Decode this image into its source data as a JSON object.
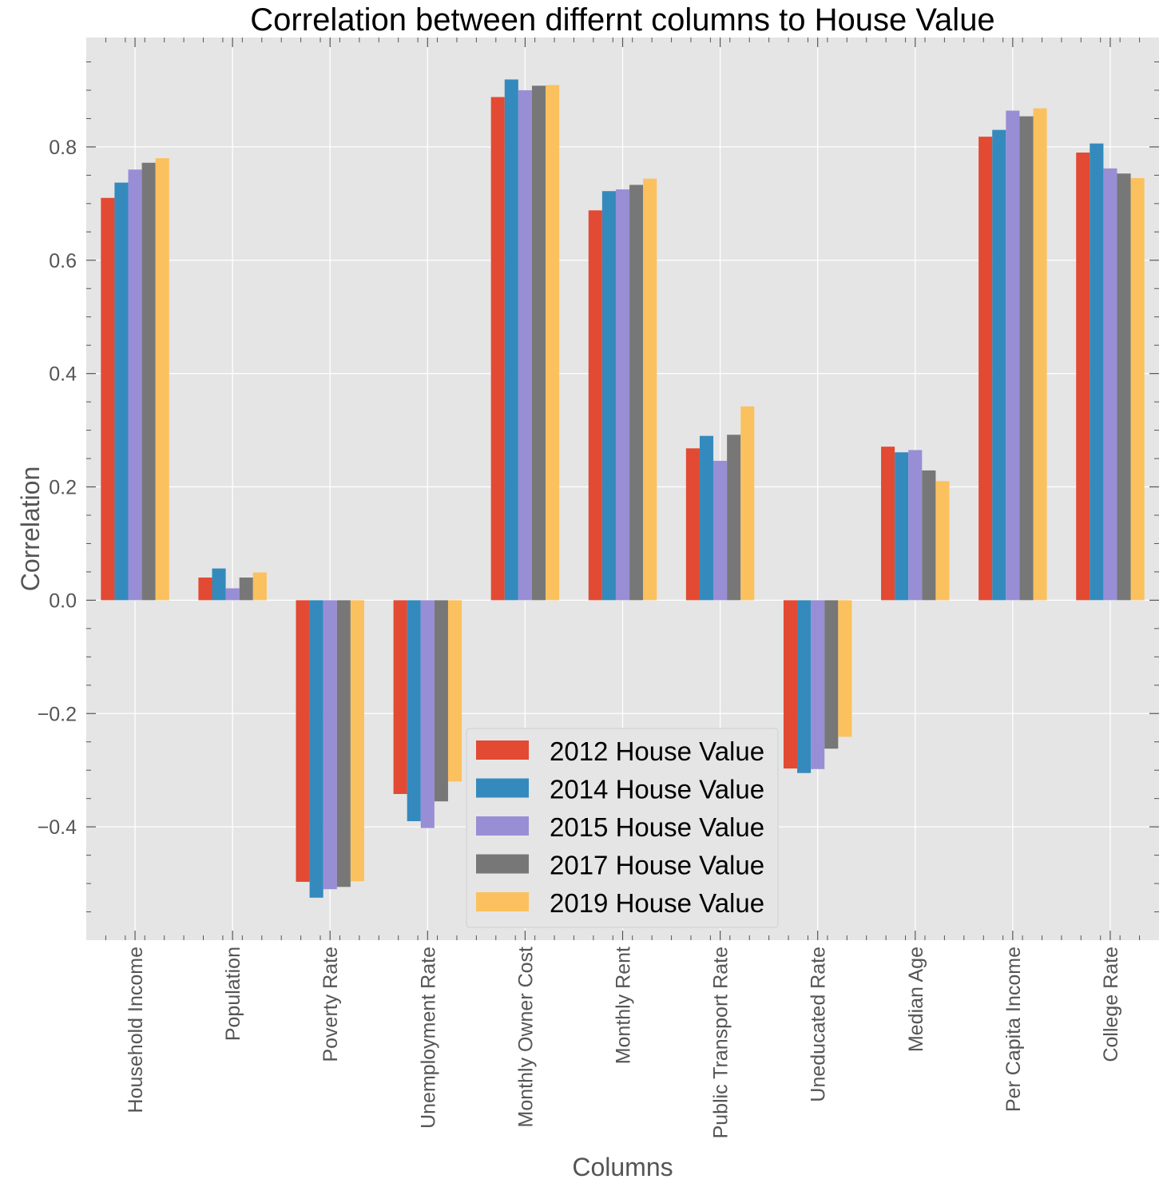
{
  "chart_data": {
    "type": "bar",
    "title": "Correlation between differnt columns to House Value",
    "xlabel": "Columns",
    "ylabel": "Correlation",
    "categories": [
      "Household Income",
      "Population",
      "Poverty Rate",
      "Unemployment Rate",
      "Monthly Owner Cost",
      "Monthly Rent",
      "Public Transport Rate",
      "Uneducated Rate",
      "Median Age",
      "Per Capita Income",
      "College Rate"
    ],
    "series": [
      {
        "name": "2012 House Value",
        "color": "#E24A33",
        "values": [
          0.71,
          0.04,
          -0.497,
          -0.342,
          0.888,
          0.688,
          0.268,
          -0.297,
          0.271,
          0.818,
          0.79
        ]
      },
      {
        "name": "2014 House Value",
        "color": "#348ABD",
        "values": [
          0.737,
          0.056,
          -0.525,
          -0.39,
          0.919,
          0.722,
          0.29,
          -0.305,
          0.261,
          0.83,
          0.806
        ]
      },
      {
        "name": "2015 House Value",
        "color": "#988ED5",
        "values": [
          0.76,
          0.021,
          -0.51,
          -0.402,
          0.9,
          0.725,
          0.246,
          -0.298,
          0.265,
          0.864,
          0.762
        ]
      },
      {
        "name": "2017 House Value",
        "color": "#777777",
        "values": [
          0.772,
          0.04,
          -0.506,
          -0.355,
          0.908,
          0.733,
          0.292,
          -0.262,
          0.229,
          0.854,
          0.753
        ]
      },
      {
        "name": "2019 House Value",
        "color": "#FBC15E",
        "values": [
          0.78,
          0.049,
          -0.496,
          -0.32,
          0.909,
          0.744,
          0.342,
          -0.241,
          0.21,
          0.868,
          0.745
        ]
      }
    ],
    "ylim": [
      -0.6,
      0.993
    ],
    "yticks": [
      -0.4,
      -0.2,
      0.0,
      0.2,
      0.4,
      0.6,
      0.8
    ],
    "ytick_labels": [
      "−0.4",
      "−0.2",
      "0.0",
      "0.2",
      "0.4",
      "0.6",
      "0.8"
    ],
    "grid": true,
    "legend_position": "lower-center",
    "style": {
      "plot_background": "#E5E5E5",
      "grid_color": "#ffffff",
      "axis_text_color": "#555555",
      "tick_color": "#555555"
    }
  }
}
